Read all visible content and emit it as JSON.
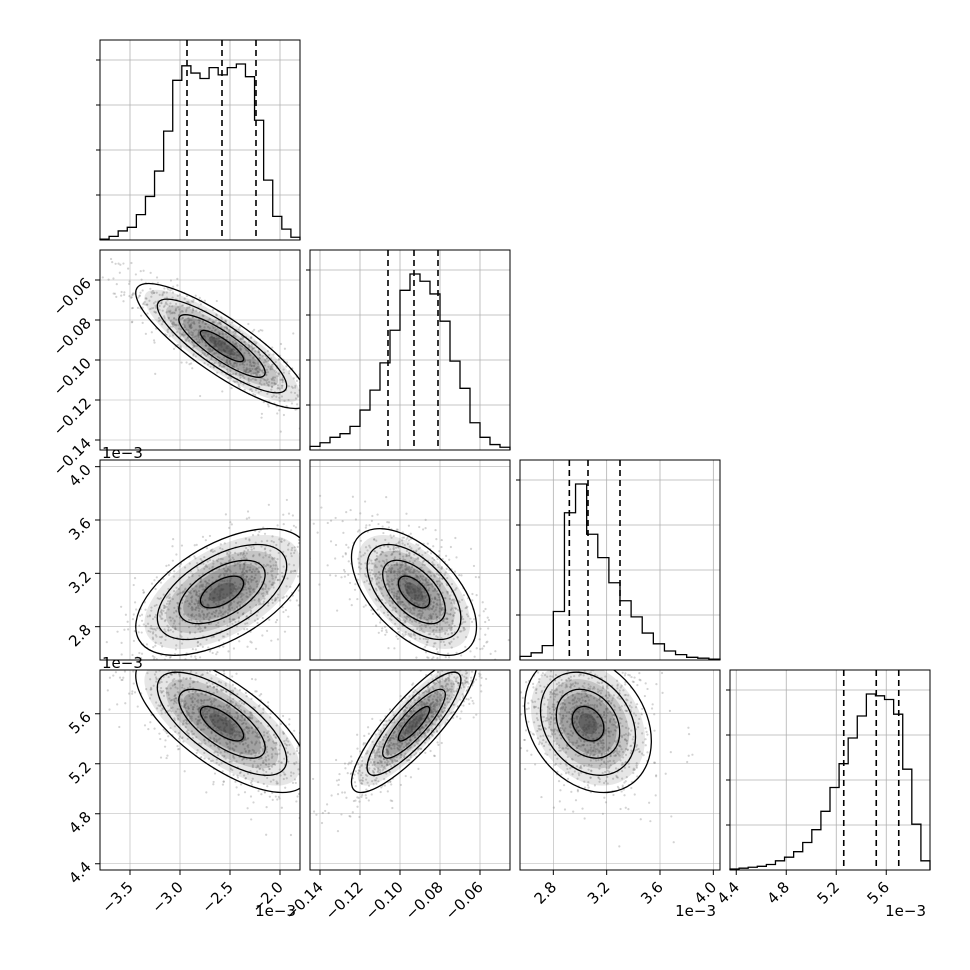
{
  "chart_data": {
    "type": "corner",
    "variables": [
      {
        "range": [
          -3.8,
          -1.8
        ],
        "ticks": [
          -3.5,
          -3.0,
          -2.5,
          -2.0
        ],
        "tick_labels": [
          "−3.5",
          "−3.0",
          "−2.5",
          "−2.0"
        ],
        "offset_text": "1e−3",
        "histogram_bins": [
          0.005,
          0.02,
          0.05,
          0.07,
          0.14,
          0.24,
          0.38,
          0.6,
          0.88,
          0.96,
          0.92,
          0.89,
          0.95,
          0.91,
          0.95,
          0.97,
          0.9,
          0.66,
          0.33,
          0.13,
          0.06,
          0.015
        ],
        "histogram_peak": 0.97,
        "quantiles": [
          -2.93,
          -2.58,
          -2.24
        ],
        "grid": true,
        "center": [
          -2.58
        ],
        "std": [
          0.36
        ]
      },
      {
        "range": [
          -0.145,
          -0.045
        ],
        "ticks": [
          -0.14,
          -0.12,
          -0.1,
          -0.08,
          -0.06
        ],
        "tick_labels": [
          "−0.14",
          "−0.12",
          "−0.10",
          "−0.08",
          "−0.06"
        ],
        "offset_text": "",
        "histogram_bins": [
          0.02,
          0.04,
          0.07,
          0.09,
          0.13,
          0.22,
          0.33,
          0.48,
          0.66,
          0.88,
          0.97,
          0.93,
          0.86,
          0.71,
          0.49,
          0.34,
          0.15,
          0.07,
          0.03,
          0.015
        ],
        "histogram_peak": 0.97,
        "quantiles": [
          -0.106,
          -0.093,
          -0.081
        ],
        "grid": true
      },
      {
        "range": [
          2.55,
          4.05
        ],
        "ticks": [
          2.8,
          3.2,
          3.6,
          4.0
        ],
        "tick_labels": [
          "2.8",
          "3.2",
          "3.6",
          "4.0"
        ],
        "offset_text": "1e−3",
        "histogram_bins": [
          0.02,
          0.04,
          0.08,
          0.27,
          0.82,
          0.98,
          0.7,
          0.57,
          0.43,
          0.33,
          0.24,
          0.15,
          0.09,
          0.05,
          0.03,
          0.015,
          0.01,
          0.005
        ],
        "histogram_peak": 0.98,
        "quantiles": [
          2.92,
          3.06,
          3.3
        ],
        "grid": true
      },
      {
        "range": [
          4.35,
          5.95
        ],
        "ticks": [
          4.4,
          4.8,
          5.2,
          5.6
        ],
        "tick_labels": [
          "4.4",
          "4.8",
          "5.2",
          "5.6"
        ],
        "offset_text": "1e−3",
        "histogram_bins": [
          0.005,
          0.01,
          0.015,
          0.02,
          0.03,
          0.05,
          0.07,
          0.1,
          0.15,
          0.22,
          0.32,
          0.45,
          0.58,
          0.72,
          0.84,
          0.96,
          0.95,
          0.93,
          0.85,
          0.55,
          0.25,
          0.05
        ],
        "histogram_peak": 0.96,
        "quantiles": [
          5.26,
          5.52,
          5.7
        ],
        "grid": true
      }
    ],
    "pairs": [
      {
        "x_var": 0,
        "y_var": 1,
        "correlation": -0.85
      },
      {
        "x_var": 0,
        "y_var": 2,
        "correlation": 0.55
      },
      {
        "x_var": 1,
        "y_var": 2,
        "correlation": -0.55
      },
      {
        "x_var": 0,
        "y_var": 3,
        "correlation": -0.7
      },
      {
        "x_var": 1,
        "y_var": 3,
        "correlation": 0.85
      },
      {
        "x_var": 2,
        "y_var": 3,
        "correlation": -0.25
      }
    ],
    "contour_levels": [
      0.5,
      1.0,
      1.5,
      2.0
    ],
    "colors": {
      "histogram_line": "#000000",
      "quantile_line": "#000000",
      "grid": "#b0b0b0",
      "scatter": "#808080",
      "density_dark": "#333333",
      "contour": "#000000",
      "frame": "#000000"
    }
  }
}
